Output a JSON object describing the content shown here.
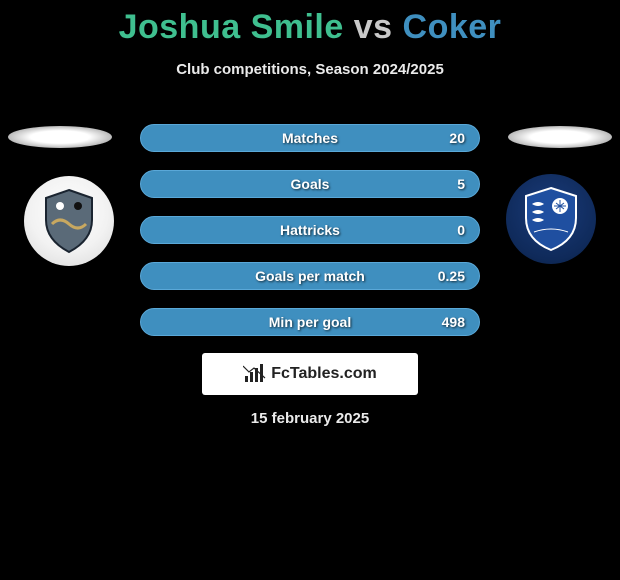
{
  "title": {
    "player1": "Joshua Smile",
    "vs": "vs",
    "player2": "Coker",
    "player1_color": "#3fbf8f",
    "vs_color": "#c9c9c9",
    "player2_color": "#3f8fbf"
  },
  "subtitle": "Club competitions, Season 2024/2025",
  "stats": {
    "row_fill_color": "#3f8fbf",
    "row_border_color": "#5aa8d8",
    "rows": [
      {
        "label": "Matches",
        "value_right": "20"
      },
      {
        "label": "Goals",
        "value_right": "5"
      },
      {
        "label": "Hattricks",
        "value_right": "0"
      },
      {
        "label": "Goals per match",
        "value_right": "0.25"
      },
      {
        "label": "Min per goal",
        "value_right": "498"
      }
    ]
  },
  "brand": "FcTables.com",
  "date": "15 february 2025",
  "badges": {
    "left": {
      "name": "team-badge-left",
      "bg": "light",
      "shield_fill": "#5a6a78",
      "shield_stroke": "#1a2430"
    },
    "right": {
      "name": "team-badge-right",
      "bg": "navy",
      "shield_fill": "#1f4fa0",
      "shield_stroke": "#ffffff"
    }
  },
  "colors": {
    "background": "#000000",
    "text_light": "#eaeaea",
    "halo": "#ffffff"
  }
}
